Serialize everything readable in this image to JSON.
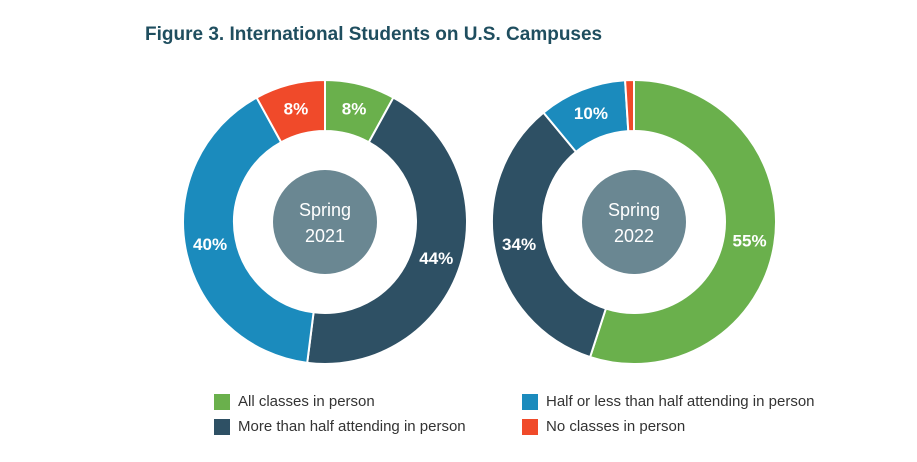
{
  "title": "Figure 3. International Students on U.S. Campuses",
  "colors": {
    "all_in_person": "#6ab04c",
    "more_than_half": "#2e5064",
    "half_or_less": "#1b8bbd",
    "no_classes": "#f04a2a",
    "center": "#6a8792"
  },
  "legend": [
    {
      "label": "All classes in person",
      "color": "#6ab04c"
    },
    {
      "label": "Half or less than half attending in person",
      "color": "#1b8bbd"
    },
    {
      "label": "More than half attending in person",
      "color": "#2e5064"
    },
    {
      "label": "No classes in person",
      "color": "#f04a2a"
    }
  ],
  "chart_data": [
    {
      "type": "pie",
      "title": "",
      "center_label": [
        "Spring",
        "2021"
      ],
      "categories": [
        "All classes in person",
        "More than half attending in person",
        "Half or less than half attending in person",
        "No classes in person"
      ],
      "values": [
        8,
        44,
        40,
        8
      ],
      "labels": [
        "8%",
        "44%",
        "40%",
        "8%"
      ],
      "colors": [
        "#6ab04c",
        "#2e5064",
        "#1b8bbd",
        "#f04a2a"
      ]
    },
    {
      "type": "pie",
      "title": "",
      "center_label": [
        "Spring",
        "2022"
      ],
      "categories": [
        "All classes in person",
        "More than half attending in person",
        "Half or less than half attending in person",
        "No classes in person"
      ],
      "values": [
        55,
        34,
        10,
        1
      ],
      "labels": [
        "55%",
        "34%",
        "10%",
        ""
      ],
      "colors": [
        "#6ab04c",
        "#2e5064",
        "#1b8bbd",
        "#f04a2a"
      ]
    }
  ]
}
